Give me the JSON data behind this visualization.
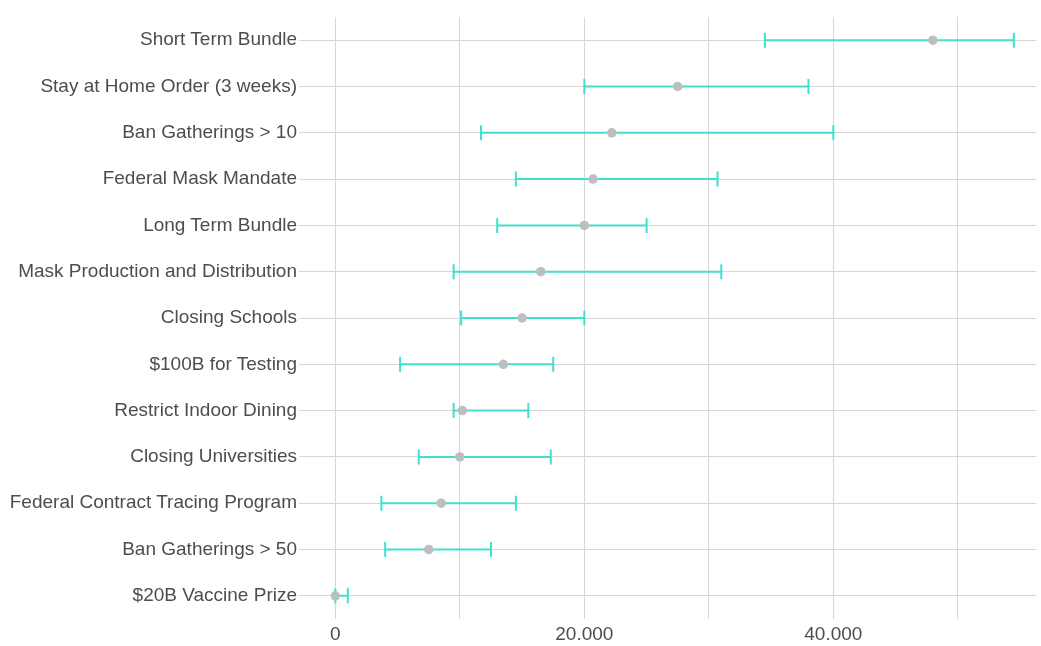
{
  "chart_data": {
    "type": "scatter",
    "orientation": "horizontal",
    "categories": [
      "Short Term Bundle",
      "Stay at Home Order (3 weeks)",
      "Ban Gatherings > 10",
      "Federal Mask Mandate",
      "Long Term Bundle",
      "Mask Production and Distribution",
      "Closing Schools",
      "$100B for Testing",
      "Restrict Indoor Dining",
      "Closing Universities",
      "Federal Contract Tracing Program",
      "Ban Gatherings > 50",
      "$20B Vaccine Prize"
    ],
    "values": [
      48000,
      27500,
      22200,
      20700,
      20000,
      16500,
      15000,
      13500,
      10200,
      10000,
      8500,
      7500,
      0
    ],
    "errors": [
      [
        34500,
        54500
      ],
      [
        20000,
        38000
      ],
      [
        11700,
        40000
      ],
      [
        14500,
        30700
      ],
      [
        13000,
        25000
      ],
      [
        9500,
        31000
      ],
      [
        10100,
        20000
      ],
      [
        5200,
        17500
      ],
      [
        9500,
        15500
      ],
      [
        6700,
        17300
      ],
      [
        3700,
        14500
      ],
      [
        4000,
        12500
      ],
      [
        0,
        1000
      ]
    ],
    "color": "#bebebe",
    "marker": "circle",
    "xlim": [
      -2600,
      56300
    ],
    "xticks": [
      0,
      {
        "value": 10000,
        "label": null
      },
      {
        "value": 20000,
        "label": "20.000"
      },
      {
        "value": 30000,
        "label": null
      },
      {
        "value": 40000,
        "label": "40.000"
      },
      {
        "value": 50000,
        "label": null
      }
    ],
    "grid": true
  }
}
